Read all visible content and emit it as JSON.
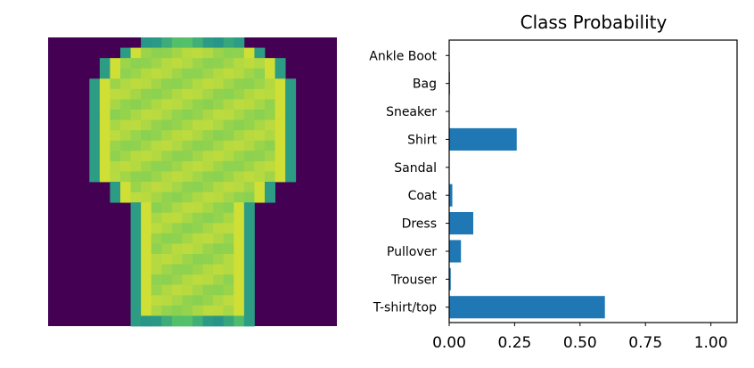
{
  "image_panel": {
    "grid_size": 28,
    "colormap": "viridis",
    "subject": "shirt-silhouette"
  },
  "chart_data": {
    "type": "bar",
    "orientation": "horizontal",
    "title": "Class Probability",
    "xlabel": "",
    "ylabel": "",
    "categories": [
      "T-shirt/top",
      "Trouser",
      "Pullover",
      "Dress",
      "Coat",
      "Sandal",
      "Shirt",
      "Sneaker",
      "Bag",
      "Ankle Boot"
    ],
    "values": [
      0.595,
      0.006,
      0.045,
      0.092,
      0.012,
      0.001,
      0.258,
      0.001,
      0.003,
      0.001
    ],
    "xlim": [
      0,
      1.1
    ],
    "xticks": [
      0.0,
      0.25,
      0.5,
      0.75,
      1.0
    ],
    "xtick_labels": [
      "0.00",
      "0.25",
      "0.50",
      "0.75",
      "1.00"
    ],
    "bar_color": "#1f77b4",
    "grid": false,
    "legend": "none"
  }
}
